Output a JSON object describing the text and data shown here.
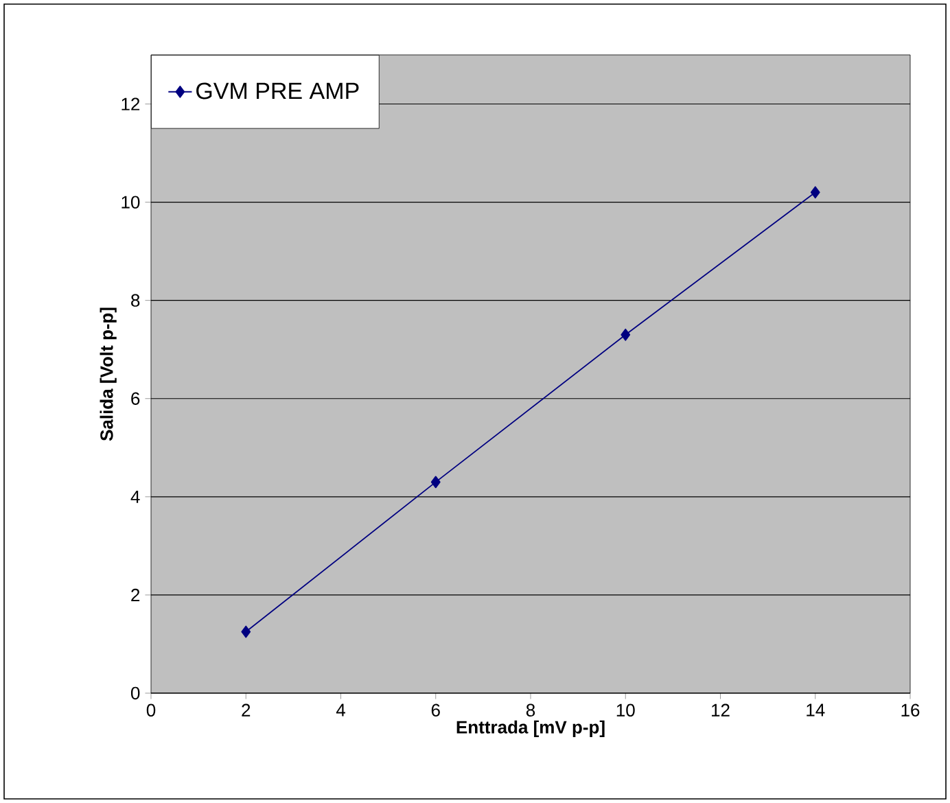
{
  "chart_data": {
    "type": "line",
    "xlabel": "Enttrada [mV p-p]",
    "ylabel": "Salida [Volt p-p]",
    "x": [
      2,
      6,
      10,
      14
    ],
    "series": [
      {
        "name": "GVM PRE AMP",
        "color": "#000080",
        "values": [
          1.25,
          4.3,
          7.3,
          10.2
        ]
      }
    ],
    "xlim": [
      0,
      16
    ],
    "xticks": [
      0,
      2,
      4,
      6,
      8,
      10,
      12,
      14,
      16
    ],
    "ylim": [
      0,
      13
    ],
    "yticks": [
      0,
      2,
      4,
      6,
      8,
      10,
      12
    ],
    "grid": "y",
    "legend": "top left",
    "marker": "diamond",
    "line_style": "solid"
  }
}
